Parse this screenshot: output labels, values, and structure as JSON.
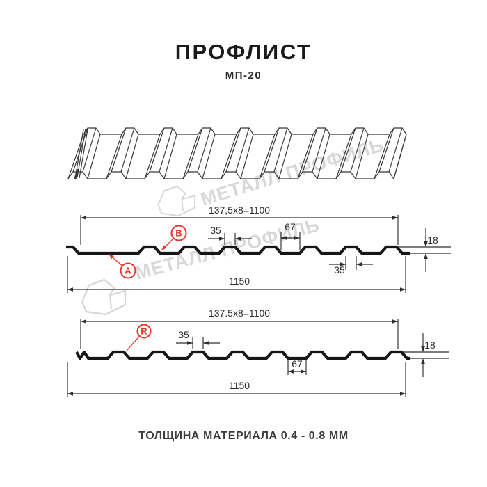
{
  "title": "ПРОФЛИСТ",
  "subtitle": "МП-20",
  "footer": "ТОЛЩИНА МАТЕРИАЛА 0.4 - 0.8 ММ",
  "watermark": {
    "brand": "МЕТАЛЛ ПРОФИЛЬ"
  },
  "colors": {
    "red": "#e8342b",
    "ink": "#161616",
    "dim": "#2e2e2e",
    "watermark": "#d8d8d8"
  },
  "drawing": {
    "profile_top": {
      "markers": [
        {
          "letter": "A"
        },
        {
          "letter": "B"
        }
      ],
      "dims": {
        "pitch": "137,5x8=1100",
        "crest_width": "35",
        "valley_width": "67",
        "height": "18",
        "crest_base": "35",
        "overall": "1150"
      }
    },
    "profile_bottom": {
      "markers": [
        {
          "letter": "R"
        }
      ],
      "dims": {
        "pitch": "137.5x8=1100",
        "crest_width": "35",
        "valley_width": "67",
        "height": "18",
        "overall": "1150"
      }
    }
  }
}
